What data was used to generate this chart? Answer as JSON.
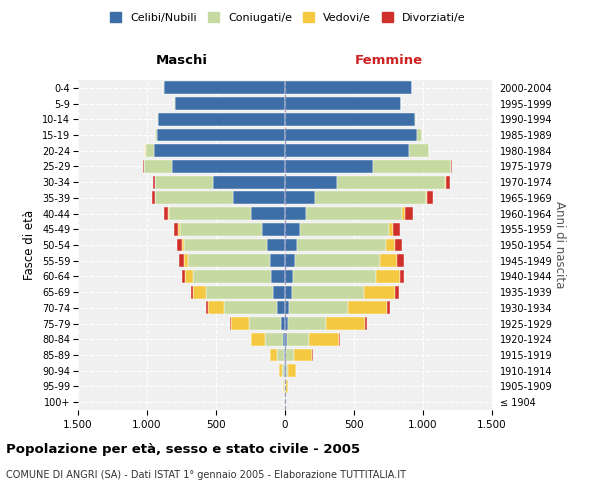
{
  "age_groups": [
    "100+",
    "95-99",
    "90-94",
    "85-89",
    "80-84",
    "75-79",
    "70-74",
    "65-69",
    "60-64",
    "55-59",
    "50-54",
    "45-49",
    "40-44",
    "35-39",
    "30-34",
    "25-29",
    "20-24",
    "15-19",
    "10-14",
    "5-9",
    "0-4"
  ],
  "birth_years": [
    "≤ 1904",
    "1905-1909",
    "1910-1914",
    "1915-1919",
    "1920-1924",
    "1925-1929",
    "1930-1934",
    "1935-1939",
    "1940-1944",
    "1945-1949",
    "1950-1954",
    "1955-1959",
    "1960-1964",
    "1965-1969",
    "1970-1974",
    "1975-1979",
    "1980-1984",
    "1985-1989",
    "1990-1994",
    "1995-1999",
    "2000-2004"
  ],
  "colors": {
    "celibi": "#3d6ea8",
    "coniugati": "#c5d9a0",
    "vedovi": "#f5c842",
    "divorziati": "#d0302a"
  },
  "maschi": {
    "celibi": [
      2,
      3,
      5,
      8,
      15,
      30,
      60,
      90,
      100,
      110,
      130,
      170,
      250,
      380,
      520,
      820,
      950,
      930,
      920,
      800,
      880
    ],
    "coniugati": [
      3,
      5,
      15,
      50,
      130,
      230,
      380,
      480,
      570,
      590,
      600,
      590,
      590,
      560,
      420,
      200,
      60,
      10,
      5,
      2,
      2
    ],
    "vedovi": [
      2,
      5,
      20,
      50,
      100,
      130,
      120,
      100,
      55,
      35,
      20,
      12,
      8,
      5,
      2,
      2,
      1,
      0,
      0,
      0,
      0
    ],
    "divorziati": [
      0,
      0,
      0,
      2,
      5,
      8,
      10,
      12,
      20,
      30,
      35,
      30,
      28,
      20,
      15,
      5,
      2,
      1,
      0,
      0,
      0
    ]
  },
  "femmine": {
    "celibi": [
      2,
      3,
      5,
      8,
      12,
      20,
      30,
      50,
      60,
      70,
      90,
      110,
      150,
      220,
      380,
      640,
      900,
      960,
      940,
      840,
      920
    ],
    "coniugati": [
      3,
      5,
      20,
      60,
      160,
      280,
      430,
      520,
      600,
      620,
      640,
      640,
      700,
      800,
      780,
      560,
      140,
      30,
      10,
      4,
      3
    ],
    "vedovi": [
      5,
      15,
      55,
      130,
      220,
      280,
      280,
      230,
      170,
      120,
      65,
      35,
      20,
      10,
      5,
      3,
      2,
      0,
      0,
      0,
      0
    ],
    "divorziati": [
      0,
      0,
      1,
      3,
      8,
      15,
      20,
      25,
      30,
      50,
      55,
      50,
      55,
      40,
      30,
      10,
      3,
      1,
      0,
      0,
      0
    ]
  },
  "xlim": 1500,
  "title": "Popolazione per età, sesso e stato civile - 2005",
  "subtitle": "COMUNE DI ANGRI (SA) - Dati ISTAT 1° gennaio 2005 - Elaborazione TUTTITALIA.IT",
  "ylabel_left": "Fasce di età",
  "ylabel_right": "Anni di nascita",
  "legend_labels": [
    "Celibi/Nubili",
    "Coniugati/e",
    "Vedovi/e",
    "Divorziati/e"
  ]
}
